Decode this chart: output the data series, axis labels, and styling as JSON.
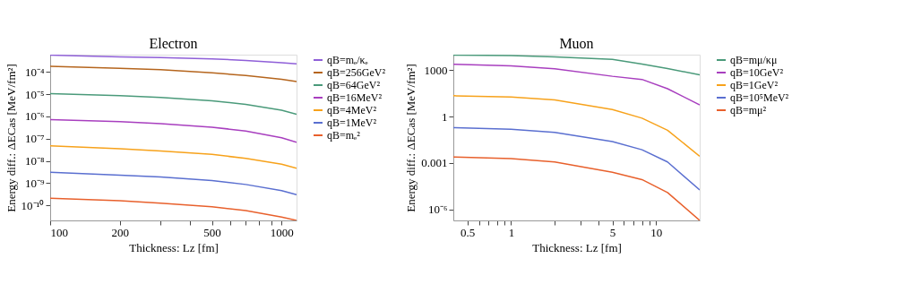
{
  "chart_data": [
    {
      "type": "line",
      "title": "Electron",
      "xlabel": "Thickness: Lz [fm]",
      "ylabel": "Energy diff.: ΔECas [MeV/fm²]",
      "log": "xy",
      "grid": false,
      "legend": "right",
      "x": [
        100,
        200,
        300,
        500,
        700,
        1000,
        1160
      ],
      "xlim": [
        100,
        1160
      ],
      "xticks": [
        100,
        200,
        {
          "value": 300,
          "label": null
        },
        {
          "value": 400,
          "label": null
        },
        500,
        {
          "value": 600,
          "label": null
        },
        {
          "value": 700,
          "label": null
        },
        {
          "value": 800,
          "label": null
        },
        {
          "value": 900,
          "label": null
        },
        1000
      ],
      "ylim": [
        2.1e-11,
        0.0006
      ],
      "yticks": [
        {
          "value": 0.0001,
          "label": "10⁻⁴"
        },
        {
          "value": 1e-05,
          "label": "10⁻⁵"
        },
        {
          "value": 1e-06,
          "label": "10⁻⁶"
        },
        {
          "value": 1e-07,
          "label": "10⁻⁷"
        },
        {
          "value": 1e-08,
          "label": "10⁻⁸"
        },
        {
          "value": 1e-09,
          "label": "10⁻⁹"
        },
        {
          "value": 1e-10,
          "label": "10⁻¹⁰"
        }
      ],
      "series": [
        {
          "name": "qB=mₑ/κₑ",
          "color": "#8f5fd8",
          "values": [
            0.00057,
            0.00048,
            0.00044,
            0.00039,
            0.00033,
            0.00026,
            0.00023
          ]
        },
        {
          "name": "qB=256GeV²",
          "color": "#b5651d",
          "values": [
            0.00018,
            0.000145,
            0.000126,
            9.1e-05,
            6.9e-05,
            4.7e-05,
            3.7e-05
          ]
        },
        {
          "name": "qB=64GeV²",
          "color": "#4a9a7a",
          "values": [
            1.05e-05,
            8.5e-06,
            7.1e-06,
            5e-06,
            3.5e-06,
            1.9e-06,
            1.26e-06
          ]
        },
        {
          "name": "qB=16MeV²",
          "color": "#a83fbf",
          "values": [
            7.2e-07,
            5.8e-07,
            4.7e-07,
            3.3e-07,
            2.2e-07,
            1.1e-07,
            6.9e-08
          ]
        },
        {
          "name": "qB=4MeV²",
          "color": "#f7a21b",
          "values": [
            4.8e-08,
            3.5e-08,
            2.8e-08,
            1.95e-08,
            1.3e-08,
            7.1e-09,
            4.7e-09
          ]
        },
        {
          "name": "qB=1MeV²",
          "color": "#5a6fd0",
          "values": [
            3.1e-09,
            2.3e-09,
            1.9e-09,
            1.3e-09,
            8.7e-10,
            4.6e-10,
            3e-10
          ]
        },
        {
          "name": "qB=mₑ²",
          "color": "#e8602c",
          "values": [
            2.1e-10,
            1.6e-10,
            1.26e-10,
            8.7e-11,
            5.8e-11,
            3e-11,
            2.1e-11
          ]
        }
      ]
    },
    {
      "type": "line",
      "title": "Muon",
      "xlabel": "Thickness: Lz [fm]",
      "ylabel": "Energy diff.: ΔECas [MeV/fm²]",
      "log": "xy",
      "grid": false,
      "legend": "right",
      "x": [
        0.4,
        1,
        2,
        5,
        8,
        12,
        20
      ],
      "xlim": [
        0.4,
        20
      ],
      "xticks": [
        0.5,
        {
          "value": 0.6,
          "label": null
        },
        {
          "value": 0.7,
          "label": null
        },
        {
          "value": 0.8,
          "label": null
        },
        {
          "value": 0.9,
          "label": null
        },
        1,
        {
          "value": 2,
          "label": null
        },
        {
          "value": 3,
          "label": null
        },
        {
          "value": 4,
          "label": null
        },
        5,
        {
          "value": 6,
          "label": null
        },
        {
          "value": 7,
          "label": null
        },
        {
          "value": 8,
          "label": null
        },
        {
          "value": 9,
          "label": null
        },
        10
      ],
      "ylim": [
        1.9e-07,
        10000
      ],
      "yticks": [
        {
          "value": 1e-06,
          "label": "10⁻⁶"
        },
        0.001,
        1,
        1000
      ],
      "series": [
        {
          "name": "qB=mμ/κμ",
          "color": "#4a9a7a",
          "values": [
            9500,
            8700,
            7100,
            5000,
            2500,
            1260,
            500
          ]
        },
        {
          "name": "qB=10GeV²",
          "color": "#a83fbf",
          "values": [
            2400,
            1900,
            1230,
            400,
            250,
            63,
            5.6
          ]
        },
        {
          "name": "qB=1GeV²",
          "color": "#f7a21b",
          "values": [
            22,
            18,
            12,
            2.8,
            0.78,
            0.13,
            0.0027
          ]
        },
        {
          "name": "qB=10⁵MeV²",
          "color": "#5a6fd0",
          "values": [
            0.19,
            0.15,
            0.095,
            0.024,
            0.0071,
            0.00115,
            1.8e-05
          ]
        },
        {
          "name": "qB=mμ²",
          "color": "#e8602c",
          "values": [
            0.0024,
            0.0019,
            0.00115,
            0.00025,
            8.3e-05,
            1.2e-05,
            1.9e-07
          ]
        }
      ]
    }
  ]
}
